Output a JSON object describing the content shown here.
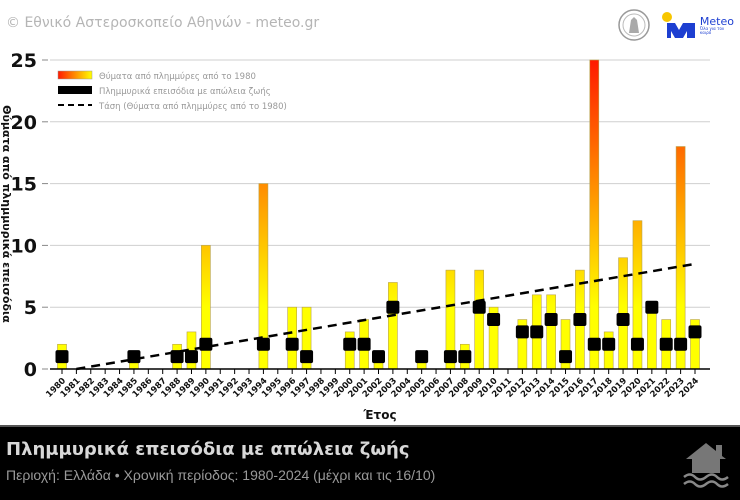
{
  "header": {
    "copyright": "© Εθνικό Αστεροσκοπείο Αθηνών - meteo.gr",
    "logo_text": "Meteo",
    "logo_tagline": "Όλα για τον καιρό"
  },
  "footer": {
    "title": "Πλημμυρικά επεισόδια με απώλεια ζωής",
    "subtitle": "Περιοχή: Ελλάδα • Χρονική περίοδος: 1980-2024 (μέχρι και τις 16/10)",
    "icon": "flooded-house-icon"
  },
  "colors": {
    "bar_low": "#ffff00",
    "bar_high": "#ff1a00",
    "marker": "#000000",
    "trend": "#000000"
  },
  "chart_data": {
    "type": "bar",
    "xlabel": "Έτος",
    "ylabel": "Θύματα από πλημμυρικά επεισόδια",
    "ylim": [
      0,
      25
    ],
    "yticks": [
      0,
      5,
      10,
      15,
      20,
      25
    ],
    "grid": true,
    "legend_placement": "top-left",
    "legend": [
      "Θύματα από πλημμύρες από το 1980",
      "Πλημμυρικά επεισόδια με απώλεια ζωής",
      "Τάση (Θύματα από πλημμύρες από το 1980)"
    ],
    "categories": [
      "1980",
      "1981",
      "1982",
      "1983",
      "1984",
      "1985",
      "1986",
      "1987",
      "1988",
      "1989",
      "1990",
      "1991",
      "1992",
      "1993",
      "1994",
      "1995",
      "1996",
      "1997",
      "1998",
      "1999",
      "2000",
      "2001",
      "2002",
      "2003",
      "2004",
      "2005",
      "2006",
      "2007",
      "2008",
      "2009",
      "2010",
      "2011",
      "2012",
      "2013",
      "2014",
      "2015",
      "2016",
      "2017",
      "2018",
      "2019",
      "2020",
      "2021",
      "2022",
      "2023",
      "2024"
    ],
    "series": [
      {
        "name": "Θύματα από πλημμύρες από το 1980",
        "type": "bar",
        "values": [
          2,
          0,
          0,
          0,
          0,
          1,
          0,
          0,
          2,
          3,
          10,
          0,
          0,
          0,
          15,
          0,
          5,
          5,
          0,
          0,
          3,
          4,
          1,
          7,
          0,
          1,
          0,
          8,
          2,
          8,
          5,
          0,
          4,
          6,
          6,
          4,
          8,
          25,
          3,
          9,
          12,
          5,
          4,
          18,
          4
        ]
      },
      {
        "name": "Πλημμυρικά επεισόδια με απώλεια ζωής",
        "type": "marker",
        "values": [
          1,
          0,
          0,
          0,
          0,
          1,
          0,
          0,
          1,
          1,
          2,
          0,
          0,
          0,
          2,
          0,
          2,
          1,
          0,
          0,
          2,
          2,
          1,
          5,
          0,
          1,
          0,
          1,
          1,
          5,
          4,
          0,
          3,
          3,
          4,
          1,
          4,
          2,
          2,
          4,
          2,
          5,
          2,
          2,
          3
        ]
      },
      {
        "name": "Τάση (Θύματα από πλημμύρες από το 1980)",
        "type": "line",
        "start": {
          "x": "1981",
          "y": 0
        },
        "end": {
          "x": "2024",
          "y": 8.5
        }
      }
    ]
  }
}
